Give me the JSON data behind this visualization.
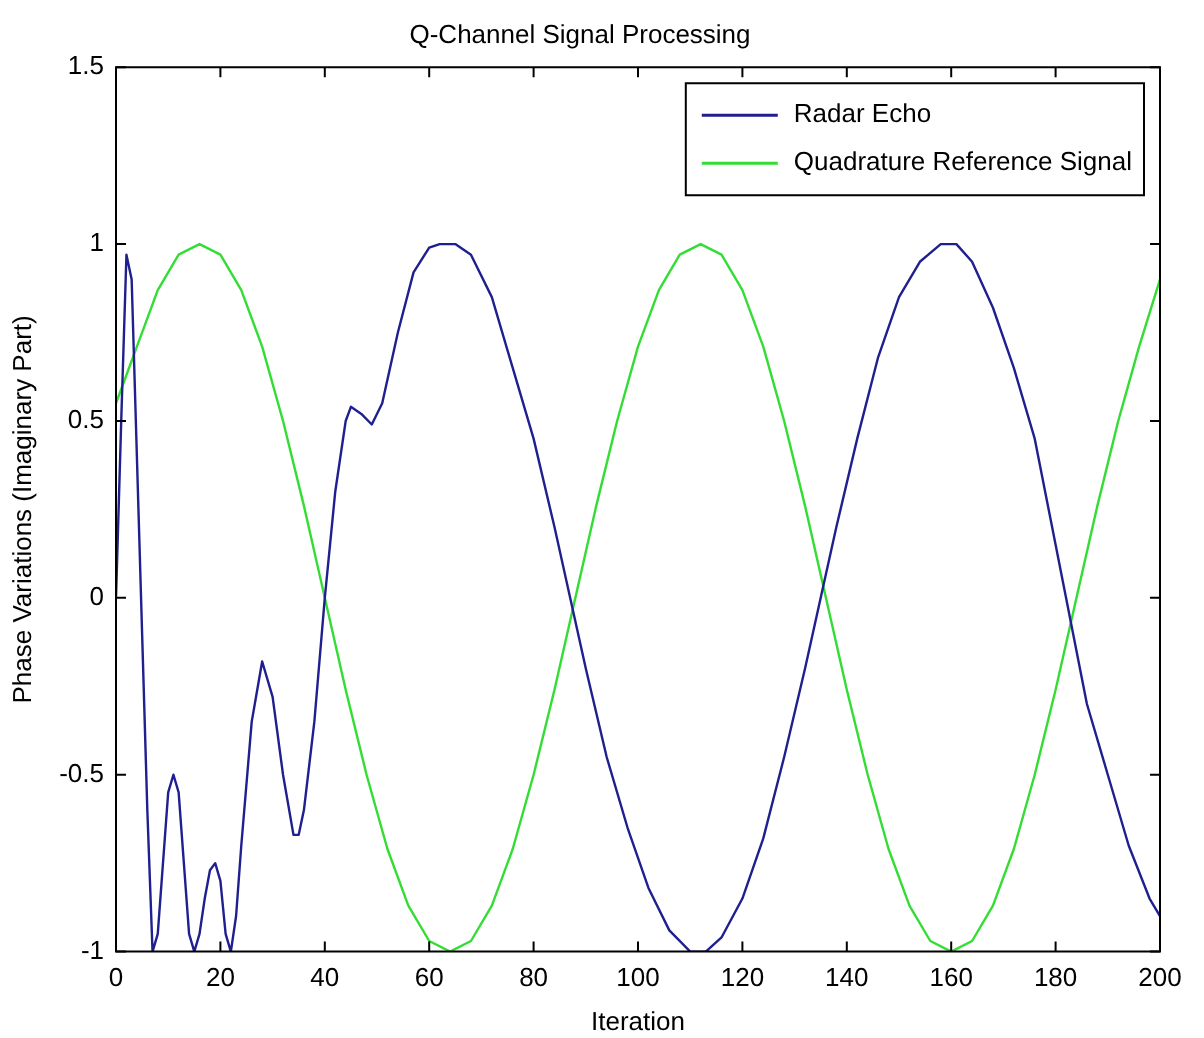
{
  "chart_data": {
    "type": "line",
    "title": "Q-Channel Signal Processing",
    "xlabel": "Iteration",
    "ylabel": "Phase Variations (Imaginary Part)",
    "xlim": [
      0,
      200
    ],
    "xticks": [
      0,
      20,
      40,
      60,
      80,
      100,
      120,
      140,
      160,
      180,
      200
    ],
    "ylim": [
      -1,
      1.5
    ],
    "yticks": [
      -1,
      -0.5,
      0,
      0.5,
      1,
      1.5
    ],
    "legend": "top right",
    "marker": "none",
    "line_style": "solid",
    "series": [
      {
        "name": "Radar Echo",
        "color": "#1f1f8f",
        "x": [
          0,
          1,
          2,
          3,
          4,
          5,
          6,
          7,
          8,
          9,
          10,
          11,
          12,
          13,
          14,
          15,
          16,
          17,
          18,
          19,
          20,
          21,
          22,
          23,
          24,
          26,
          28,
          30,
          32,
          34,
          35,
          36,
          38,
          40,
          42,
          44,
          45,
          47,
          49,
          51,
          54,
          57,
          60,
          62,
          65,
          68,
          72,
          76,
          80,
          84,
          87,
          90,
          94,
          98,
          102,
          106,
          110,
          113,
          116,
          120,
          124,
          128,
          132,
          135,
          138,
          142,
          146,
          150,
          154,
          158,
          161,
          164,
          168,
          172,
          176,
          180,
          182,
          186,
          190,
          194,
          198,
          200
        ],
        "values": [
          0,
          0.5,
          0.97,
          0.9,
          0.4,
          -0.1,
          -0.6,
          -1,
          -0.95,
          -0.75,
          -0.55,
          -0.5,
          -0.55,
          -0.75,
          -0.95,
          -1,
          -0.95,
          -0.85,
          -0.77,
          -0.75,
          -0.8,
          -0.95,
          -1,
          -0.9,
          -0.7,
          -0.35,
          -0.18,
          -0.28,
          -0.5,
          -0.67,
          -0.67,
          -0.6,
          -0.35,
          0,
          0.3,
          0.5,
          0.54,
          0.52,
          0.49,
          0.55,
          0.75,
          0.92,
          0.99,
          1,
          1,
          0.97,
          0.85,
          0.65,
          0.45,
          0.2,
          0,
          -0.2,
          -0.45,
          -0.65,
          -0.82,
          -0.94,
          -1,
          -1,
          -0.96,
          -0.85,
          -0.68,
          -0.45,
          -0.2,
          0,
          0.2,
          0.45,
          0.68,
          0.85,
          0.95,
          1,
          1,
          0.95,
          0.82,
          0.65,
          0.45,
          0.15,
          0,
          -0.3,
          -0.5,
          -0.7,
          -0.85,
          -0.9
        ]
      },
      {
        "name": "Quadrature Reference Signal",
        "color": "#33dd33",
        "x": [
          0,
          4,
          8,
          12,
          16,
          20,
          24,
          28,
          32,
          36,
          40,
          44,
          48,
          52,
          56,
          60,
          64,
          68,
          72,
          76,
          80,
          84,
          88,
          92,
          96,
          100,
          104,
          108,
          112,
          116,
          120,
          124,
          128,
          132,
          136,
          140,
          144,
          148,
          152,
          156,
          160,
          164,
          168,
          172,
          176,
          180,
          184,
          188,
          192,
          196,
          200
        ],
        "values": [
          0.55,
          0.71,
          0.87,
          0.97,
          1,
          0.97,
          0.87,
          0.71,
          0.5,
          0.26,
          0,
          -0.26,
          -0.5,
          -0.71,
          -0.87,
          -0.97,
          -1,
          -0.97,
          -0.87,
          -0.71,
          -0.5,
          -0.26,
          0,
          0.26,
          0.5,
          0.71,
          0.87,
          0.97,
          1,
          0.97,
          0.87,
          0.71,
          0.5,
          0.26,
          0,
          -0.26,
          -0.5,
          -0.71,
          -0.87,
          -0.97,
          -1,
          -0.97,
          -0.87,
          -0.71,
          -0.5,
          -0.26,
          0,
          0.26,
          0.5,
          0.71,
          0.9
        ]
      }
    ]
  }
}
